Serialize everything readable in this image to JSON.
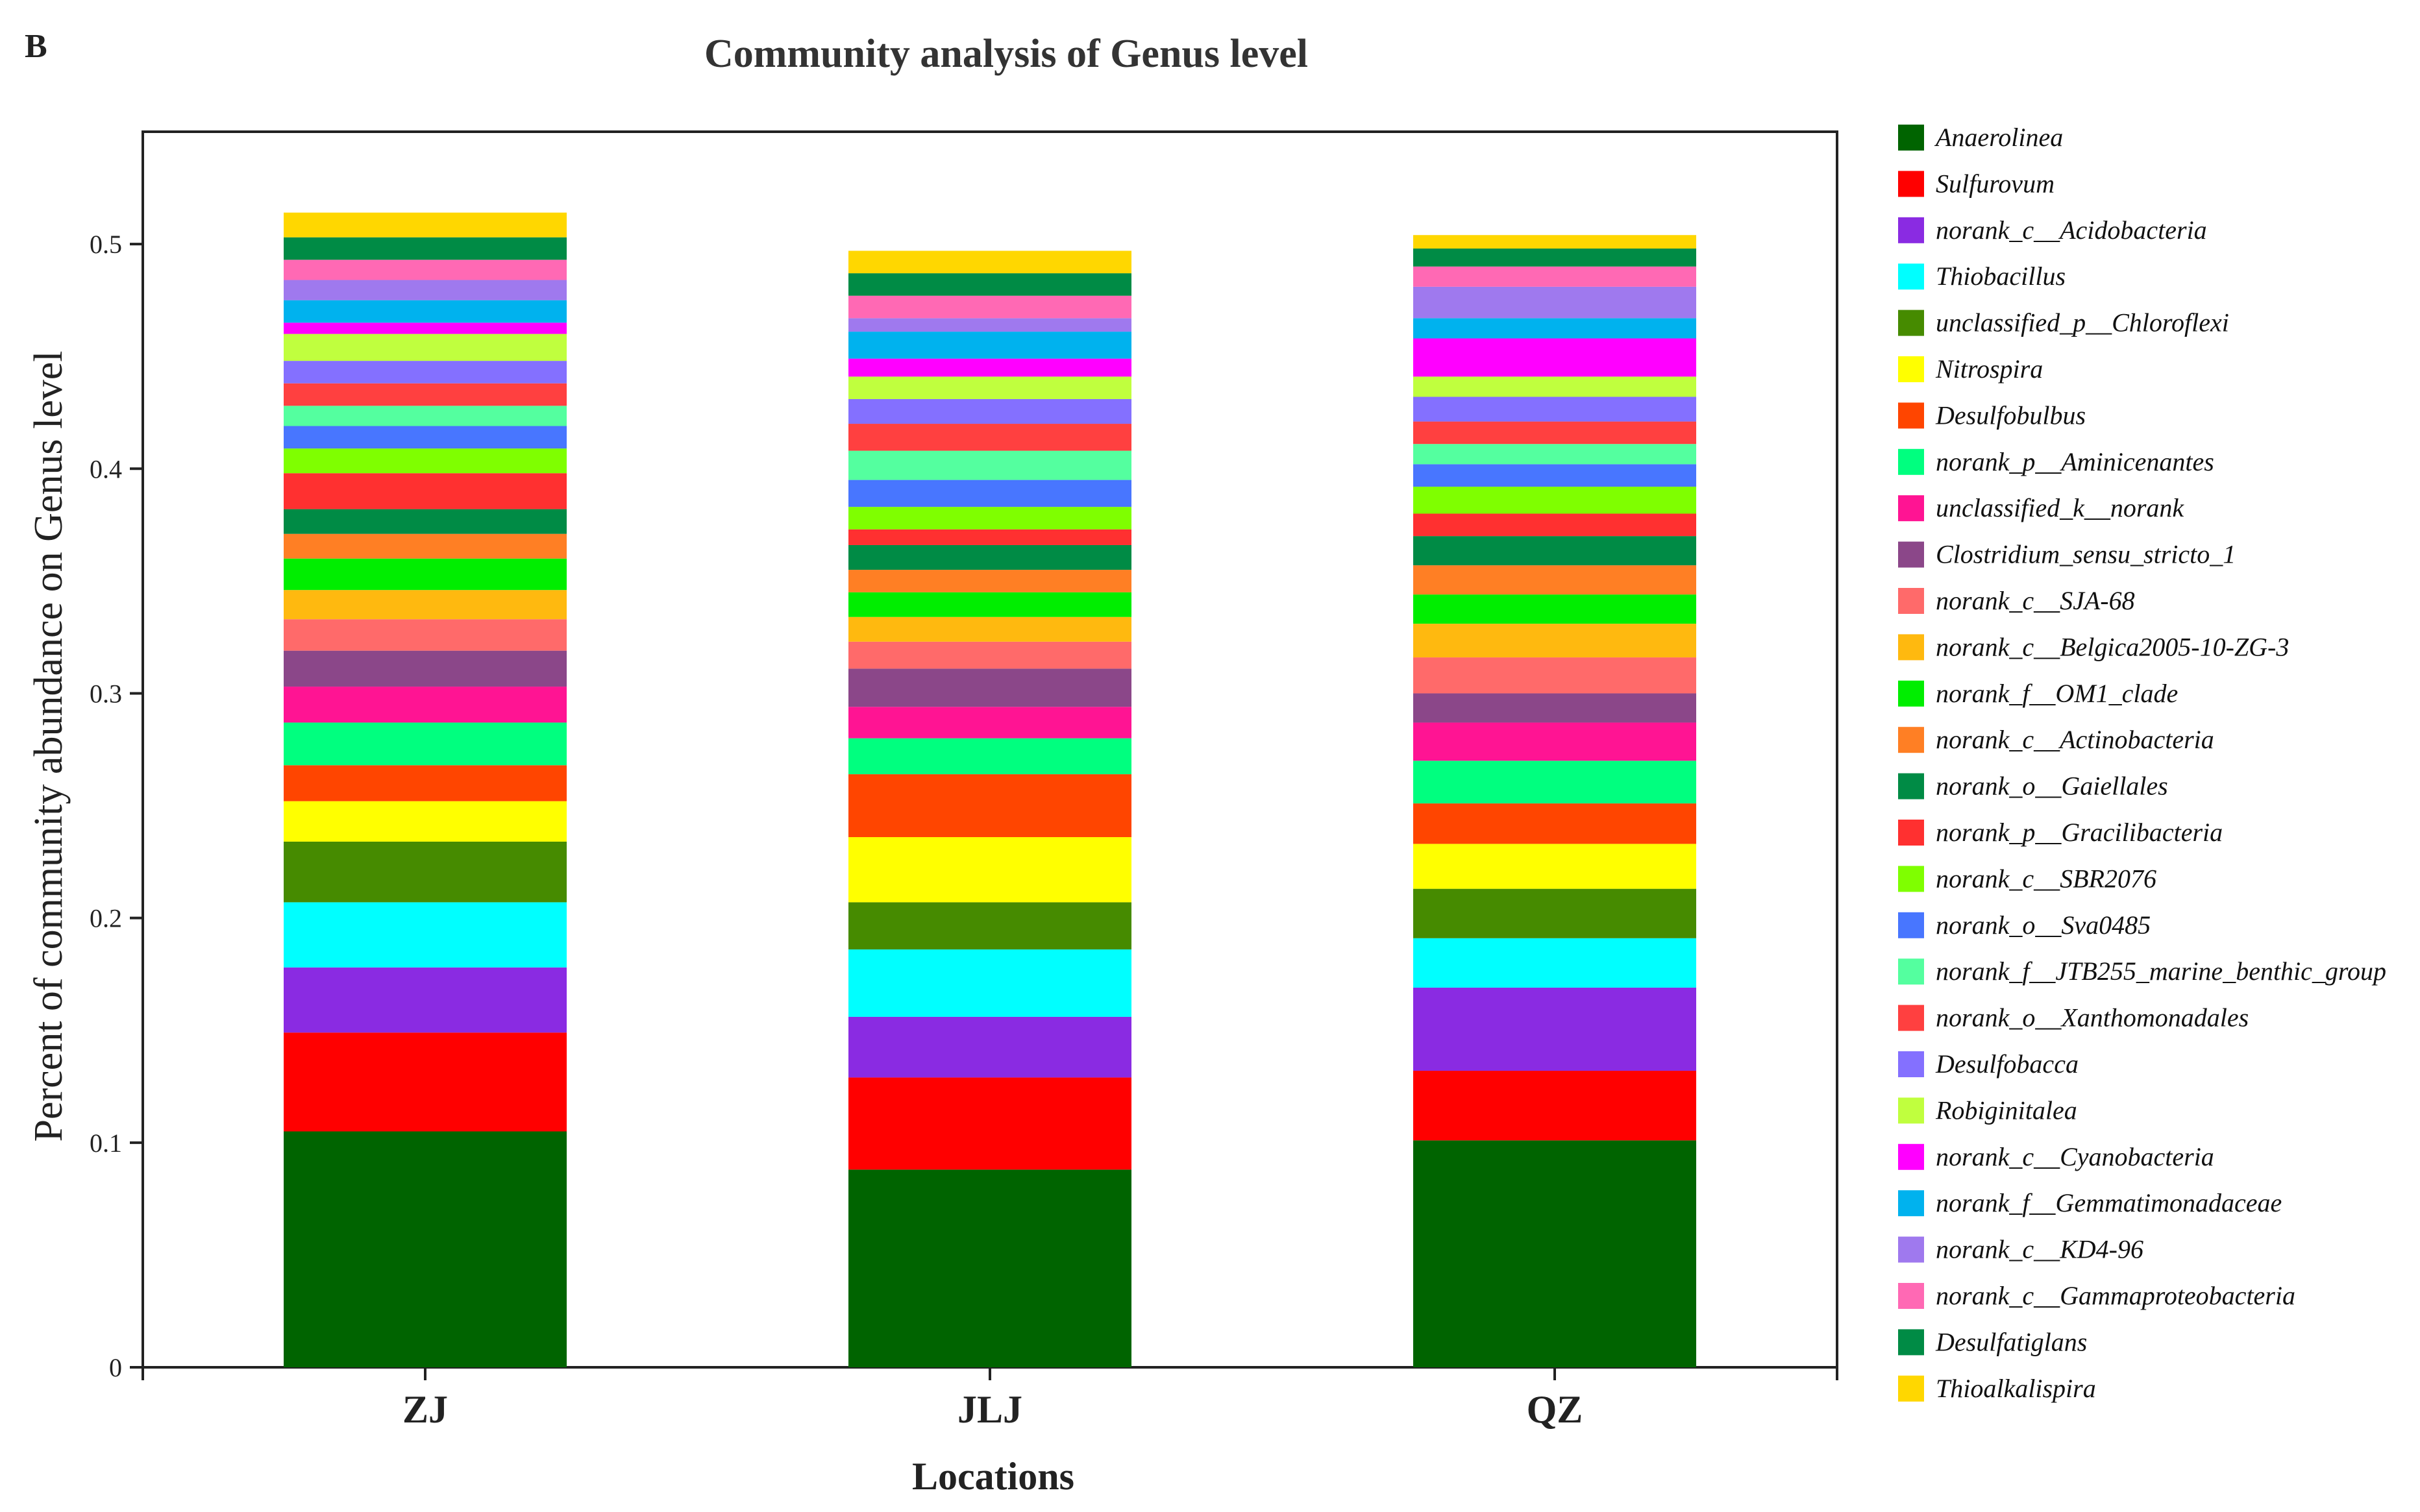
{
  "panel_label": "B",
  "chart_data": {
    "type": "bar",
    "stacked": true,
    "title": "Community analysis of Genus level",
    "xlabel": "Locations",
    "ylabel": "Percent of community abundance on Genus level",
    "ylim": [
      0,
      0.55
    ],
    "yticks": [
      0,
      0.1,
      0.2,
      0.3,
      0.4,
      0.5
    ],
    "ytick_labels": [
      "0",
      "0.1",
      "0.2",
      "0.3",
      "0.4",
      "0.5"
    ],
    "grid": false,
    "legend_position": "right",
    "categories": [
      "ZJ",
      "JLJ",
      "QZ"
    ],
    "series": [
      {
        "name": "Anaerolinea",
        "color": "#006400",
        "values": [
          0.105,
          0.088,
          0.101
        ]
      },
      {
        "name": "Sulfurovum",
        "color": "#ff0000",
        "values": [
          0.044,
          0.041,
          0.031
        ]
      },
      {
        "name": "norank_c__Acidobacteria",
        "color": "#8a2be2",
        "values": [
          0.029,
          0.027,
          0.037
        ]
      },
      {
        "name": "Thiobacillus",
        "color": "#00ffff",
        "values": [
          0.029,
          0.03,
          0.022
        ]
      },
      {
        "name": "unclassified_p__Chloroflexi",
        "color": "#468b00",
        "values": [
          0.027,
          0.021,
          0.022
        ]
      },
      {
        "name": "Nitrospira",
        "color": "#ffff00",
        "values": [
          0.018,
          0.029,
          0.02
        ]
      },
      {
        "name": "Desulfobulbus",
        "color": "#ff4500",
        "values": [
          0.016,
          0.028,
          0.018
        ]
      },
      {
        "name": "norank_p__Aminicenantes",
        "color": "#00ff7f",
        "values": [
          0.019,
          0.016,
          0.019
        ]
      },
      {
        "name": "unclassified_k__norank",
        "color": "#ff1493",
        "values": [
          0.016,
          0.014,
          0.017
        ]
      },
      {
        "name": "Clostridium_sensu_stricto_1",
        "color": "#8b4789",
        "values": [
          0.016,
          0.017,
          0.013
        ]
      },
      {
        "name": "norank_c__SJA-68",
        "color": "#ff6a6a",
        "values": [
          0.014,
          0.012,
          0.016
        ]
      },
      {
        "name": "norank_c__Belgica2005-10-ZG-3",
        "color": "#ffb90f",
        "values": [
          0.013,
          0.011,
          0.015
        ]
      },
      {
        "name": "norank_f__OM1_clade",
        "color": "#00ee00",
        "values": [
          0.014,
          0.011,
          0.013
        ]
      },
      {
        "name": "norank_c__Actinobacteria",
        "color": "#ff7f24",
        "values": [
          0.011,
          0.01,
          0.013
        ]
      },
      {
        "name": "norank_o__Gaiellales",
        "color": "#008b45",
        "values": [
          0.011,
          0.011,
          0.013
        ]
      },
      {
        "name": "norank_p__Gracilibacteria",
        "color": "#ff3030",
        "values": [
          0.016,
          0.007,
          0.01
        ]
      },
      {
        "name": "norank_c__SBR2076",
        "color": "#7fff00",
        "values": [
          0.011,
          0.01,
          0.012
        ]
      },
      {
        "name": "norank_o__Sva0485",
        "color": "#4876ff",
        "values": [
          0.01,
          0.012,
          0.01
        ]
      },
      {
        "name": "norank_f__JTB255_marine_benthic_group",
        "color": "#54ff9f",
        "values": [
          0.009,
          0.013,
          0.009
        ]
      },
      {
        "name": "norank_o__Xanthomonadales",
        "color": "#ff4040",
        "values": [
          0.01,
          0.012,
          0.01
        ]
      },
      {
        "name": "Desulfobacca",
        "color": "#8470ff",
        "values": [
          0.01,
          0.011,
          0.011
        ]
      },
      {
        "name": "Robiginitalea",
        "color": "#c0ff3e",
        "values": [
          0.012,
          0.01,
          0.009
        ]
      },
      {
        "name": "norank_c__Cyanobacteria",
        "color": "#ff00ff",
        "values": [
          0.005,
          0.008,
          0.017
        ]
      },
      {
        "name": "norank_f__Gemmatimonadaceae",
        "color": "#00b2ee",
        "values": [
          0.01,
          0.012,
          0.009
        ]
      },
      {
        "name": "norank_c__KD4-96",
        "color": "#9f79ee",
        "values": [
          0.009,
          0.006,
          0.014
        ]
      },
      {
        "name": "norank_c__Gammaproteobacteria",
        "color": "#ff69b4",
        "values": [
          0.009,
          0.01,
          0.009
        ]
      },
      {
        "name": "Desulfatiglans",
        "color": "#008b45",
        "values": [
          0.01,
          0.01,
          0.008
        ]
      },
      {
        "name": "Thioalkalispira",
        "color": "#ffd700",
        "values": [
          0.011,
          0.01,
          0.006
        ]
      }
    ]
  }
}
